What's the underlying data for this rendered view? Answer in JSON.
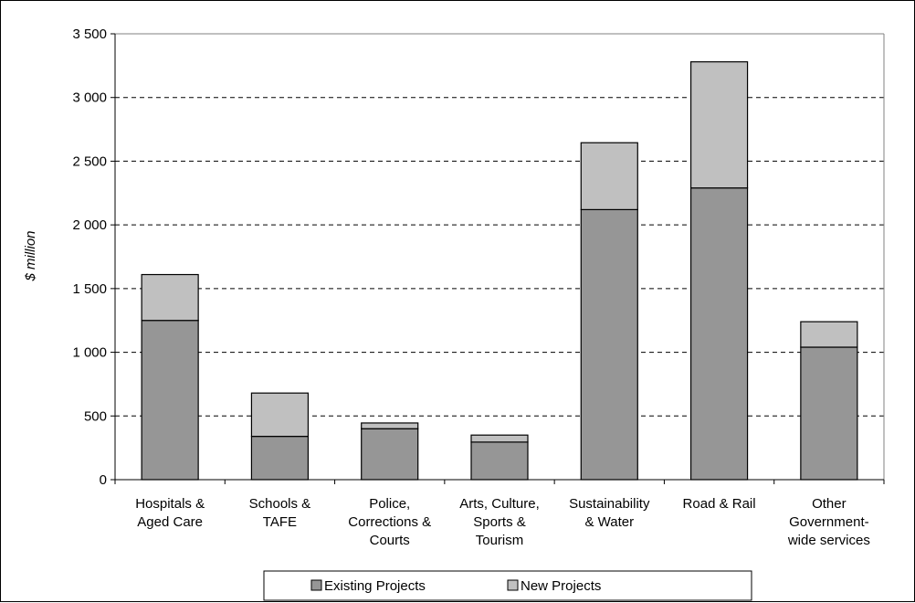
{
  "chart_data": {
    "type": "bar",
    "stacked": true,
    "title": "",
    "xlabel": "",
    "ylabel": "$ million",
    "ylim": [
      0,
      3500
    ],
    "ytick_step": 500,
    "ytick_labels": [
      "0",
      "500",
      "1 000",
      "1 500",
      "2 000",
      "2 500",
      "3 000",
      "3 500"
    ],
    "grid": "horizontal dashed",
    "legend_position": "bottom",
    "categories": [
      [
        "Hospitals &",
        "Aged Care"
      ],
      [
        "Schools &",
        "TAFE"
      ],
      [
        "Police,",
        "Corrections &",
        "Courts"
      ],
      [
        "Arts, Culture,",
        "Sports &",
        "Tourism"
      ],
      [
        "Sustainability",
        "& Water"
      ],
      [
        "Road & Rail"
      ],
      [
        "Other",
        "Government-",
        "wide services"
      ]
    ],
    "series": [
      {
        "name": "Existing Projects",
        "color": "#969696",
        "values": [
          1250,
          340,
          400,
          295,
          2120,
          2290,
          1040
        ]
      },
      {
        "name": "New Projects",
        "color": "#c0c0c0",
        "values": [
          360,
          340,
          45,
          55,
          525,
          990,
          200
        ]
      }
    ]
  }
}
